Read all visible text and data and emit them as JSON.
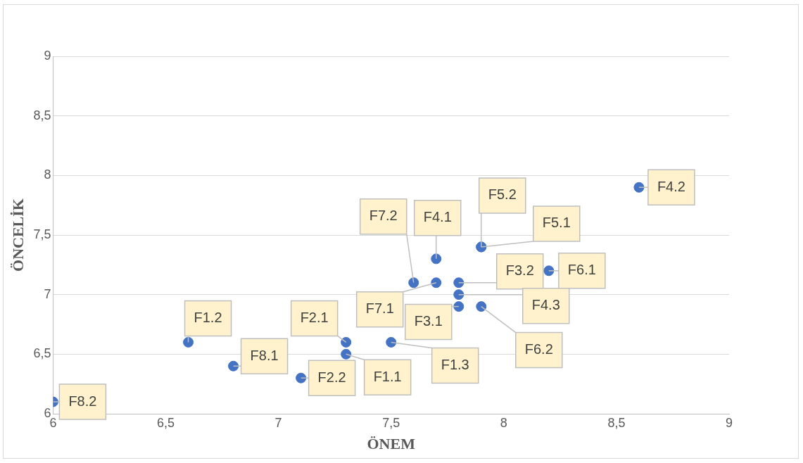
{
  "chart_data": {
    "type": "scatter",
    "xlabel": "ÖNEM",
    "ylabel": "ÖNCELİK",
    "series": [
      {
        "color": "#4472c4",
        "x": [
          8.6,
          7.9,
          7.9,
          7.7,
          7.6,
          7.7,
          7.8,
          8.2,
          7.8,
          7.8,
          7.9,
          7.3,
          7.3,
          7.5,
          7.1,
          6.8,
          6.6,
          6.0
        ],
        "values": [
          7.9,
          7.4,
          7.4,
          7.3,
          7.1,
          7.1,
          7.1,
          7.2,
          7.0,
          6.9,
          6.9,
          6.6,
          6.5,
          6.6,
          6.3,
          6.4,
          6.6,
          6.1
        ]
      }
    ],
    "annotations": [
      {
        "text": "F4.2",
        "x": 8.6,
        "y": 7.9
      },
      {
        "text": "F5.2",
        "x": 7.9,
        "y": 7.4
      },
      {
        "text": "F5.1",
        "x": 7.9,
        "y": 7.4
      },
      {
        "text": "F4.1",
        "x": 7.7,
        "y": 7.3
      },
      {
        "text": "F7.2",
        "x": 7.6,
        "y": 7.1
      },
      {
        "text": "F7.1",
        "x": 7.7,
        "y": 7.1
      },
      {
        "text": "F3.2",
        "x": 7.8,
        "y": 7.1
      },
      {
        "text": "F6.1",
        "x": 8.2,
        "y": 7.2
      },
      {
        "text": "F4.3",
        "x": 7.8,
        "y": 7.0
      },
      {
        "text": "F3.1",
        "x": 7.8,
        "y": 6.9
      },
      {
        "text": "F6.2",
        "x": 7.9,
        "y": 6.9
      },
      {
        "text": "F2.1",
        "x": 7.3,
        "y": 6.6
      },
      {
        "text": "F1.1",
        "x": 7.3,
        "y": 6.5
      },
      {
        "text": "F1.3",
        "x": 7.5,
        "y": 6.6
      },
      {
        "text": "F2.2",
        "x": 7.1,
        "y": 6.3
      },
      {
        "text": "F8.1",
        "x": 6.8,
        "y": 6.4
      },
      {
        "text": "F1.2",
        "x": 6.6,
        "y": 6.6
      },
      {
        "text": "F8.2",
        "x": 6.0,
        "y": 6.1
      }
    ],
    "xlim": [
      6,
      9
    ],
    "xticks": [
      6,
      {
        "value": 6.5,
        "label": "6,5"
      },
      7,
      {
        "value": 7.5,
        "label": "7,5"
      },
      8,
      {
        "value": 8.5,
        "label": "8,5"
      },
      9
    ],
    "ylim": [
      6,
      9
    ],
    "yticks": [
      6,
      {
        "value": 6.5,
        "label": "6,5"
      },
      7,
      {
        "value": 7.5,
        "label": "7,5"
      },
      8,
      {
        "value": 8.5,
        "label": "8,5"
      },
      9
    ],
    "grid": "y",
    "legend": false,
    "marker": "circle"
  }
}
